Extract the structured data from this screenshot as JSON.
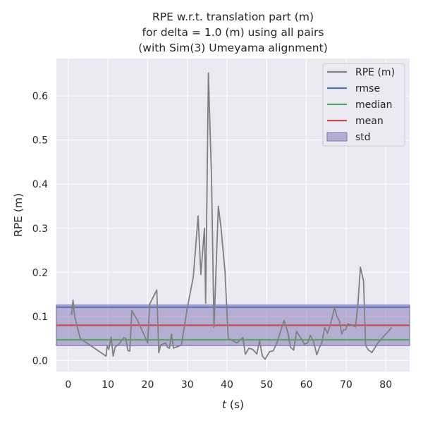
{
  "chart_data": {
    "type": "line",
    "title_lines": [
      "RPE w.r.t. translation part (m)",
      "for delta = 1.0 (m) using all pairs",
      "(with Sim(3) Umeyama alignment)"
    ],
    "xlabel": "t (s)",
    "xlabel_var": "t",
    "xlabel_unit": " (s)",
    "ylabel": "RPE (m)",
    "xlim": [
      -3,
      86
    ],
    "ylim": [
      -0.025,
      0.685
    ],
    "xticks": [
      0,
      10,
      20,
      30,
      40,
      50,
      60,
      70,
      80
    ],
    "yticks": [
      0.0,
      0.1,
      0.2,
      0.3,
      0.4,
      0.5,
      0.6
    ],
    "ytick_labels": [
      "0.0",
      "0.1",
      "0.2",
      "0.3",
      "0.4",
      "0.5",
      "0.6"
    ],
    "grid": true,
    "legend_position": "top-right",
    "legend": [
      "RPE (m)",
      "rmse",
      "median",
      "mean",
      "std"
    ],
    "colors": {
      "background": "#eaeaf2",
      "grid": "#ffffff",
      "rpe": "#808080",
      "rmse": "#4c72b0",
      "median": "#55a868",
      "mean": "#c44e52",
      "std": "#8172b2"
    },
    "stats": {
      "rmse": 0.121,
      "median": 0.047,
      "mean": 0.08,
      "std_band": [
        0.034,
        0.126
      ]
    },
    "series": [
      {
        "name": "RPE (m)",
        "x": [
          0.8,
          1.2,
          1.6,
          3.0,
          9.5,
          9.8,
          10.2,
          10.8,
          11.3,
          11.8,
          13.0,
          14.0,
          14.5,
          15.0,
          15.5,
          16.0,
          17.5,
          19.0,
          20.0,
          20.5,
          22.3,
          22.8,
          23.3,
          24.5,
          25.0,
          25.5,
          26.0,
          26.5,
          28.5,
          30.0,
          31.5,
          32.7,
          33.4,
          34.3,
          34.6,
          35.3,
          36.1,
          36.7,
          37.8,
          38.5,
          39.5,
          40.3,
          42.5,
          44.0,
          44.6,
          45.5,
          46.5,
          47.5,
          48.2,
          48.9,
          49.6,
          50.7,
          51.6,
          52.6,
          53.6,
          54.4,
          55.4,
          56.0,
          56.8,
          57.5,
          58.5,
          59.5,
          60.3,
          61.0,
          61.8,
          62.6,
          63.3,
          63.9,
          64.6,
          65.3,
          66.0,
          67.1,
          67.7,
          68.3,
          68.9,
          69.4,
          69.9,
          70.4,
          71.4,
          72.4,
          73.0,
          73.6,
          74.4,
          74.9,
          75.5,
          76.5,
          78.0,
          80.0,
          81.5
        ],
        "y": [
          0.103,
          0.137,
          0.1,
          0.05,
          0.01,
          0.033,
          0.025,
          0.053,
          0.01,
          0.03,
          0.04,
          0.052,
          0.05,
          0.023,
          0.021,
          0.113,
          0.09,
          0.06,
          0.04,
          0.128,
          0.16,
          0.018,
          0.035,
          0.04,
          0.03,
          0.028,
          0.06,
          0.028,
          0.035,
          0.12,
          0.19,
          0.328,
          0.195,
          0.3,
          0.13,
          0.652,
          0.41,
          0.075,
          0.35,
          0.3,
          0.2,
          0.05,
          0.04,
          0.052,
          0.014,
          0.028,
          0.025,
          0.015,
          0.045,
          0.01,
          0.003,
          0.02,
          0.022,
          0.04,
          0.07,
          0.091,
          0.06,
          0.03,
          0.024,
          0.066,
          0.052,
          0.037,
          0.04,
          0.057,
          0.043,
          0.013,
          0.03,
          0.04,
          0.075,
          0.062,
          0.08,
          0.12,
          0.1,
          0.09,
          0.06,
          0.07,
          0.07,
          0.083,
          0.081,
          0.076,
          0.13,
          0.212,
          0.18,
          0.035,
          0.025,
          0.018,
          0.04,
          0.06,
          0.075
        ]
      }
    ]
  }
}
